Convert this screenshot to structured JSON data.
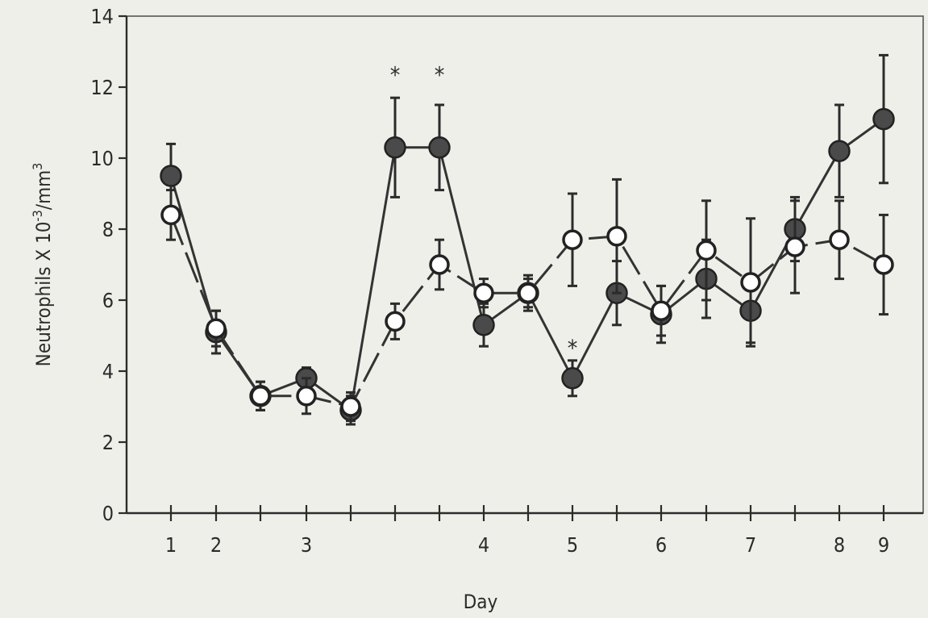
{
  "chart_data": {
    "type": "line",
    "xlabel": "Day",
    "ylabel": "Neutrophils X 10-3/mm3",
    "ylabel_parts": {
      "main": "Neutrophils X 10",
      "exp1": "-3",
      "unit": "/mm",
      "exp2": "3"
    },
    "ylim": [
      0,
      14
    ],
    "y_ticks": [
      0,
      2,
      4,
      6,
      8,
      10,
      12,
      14
    ],
    "x_ticks": [
      {
        "pos": 1,
        "label": "1"
      },
      {
        "pos": 2,
        "label": "2"
      },
      {
        "pos": 2.5,
        "label": ""
      },
      {
        "pos": 3,
        "label": "3"
      },
      {
        "pos": 3.5,
        "label": ""
      },
      {
        "pos": 3.75,
        "label": ""
      },
      {
        "pos": 4,
        "label": ""
      },
      {
        "pos": 4.5,
        "label": "4"
      },
      {
        "pos": 5,
        "label": ""
      },
      {
        "pos": 5.5,
        "label": "5"
      },
      {
        "pos": 6,
        "label": ""
      },
      {
        "pos": 6.5,
        "label": "6"
      },
      {
        "pos": 7,
        "label": ""
      },
      {
        "pos": 7.5,
        "label": "7"
      },
      {
        "pos": 8,
        "label": ""
      },
      {
        "pos": 8.5,
        "label": "8"
      },
      {
        "pos": 9,
        "label": "9"
      }
    ],
    "xlim": [
      0.6,
      9.3
    ],
    "grid": false,
    "series": [
      {
        "style": "filled",
        "points": [
          {
            "x": 1,
            "y": 9.5,
            "err": 0.9
          },
          {
            "x": 2,
            "y": 5.1,
            "err": 0.6
          },
          {
            "x": 2.5,
            "y": 3.3,
            "err": 0.4
          },
          {
            "x": 3,
            "y": 3.8,
            "err": 0.3
          },
          {
            "x": 3.5,
            "y": 2.9,
            "err": 0.4
          },
          {
            "x": 4,
            "y": 10.3,
            "err": 1.4
          },
          {
            "x": 4.5,
            "y": 10.3,
            "err": 1.2
          },
          {
            "x": 5,
            "y": 5.3,
            "err": 0.6
          },
          {
            "x": 5.5,
            "y": 6.2,
            "err": 0.5
          },
          {
            "x": 6,
            "y": 3.8,
            "err": 0.5
          },
          {
            "x": 6.5,
            "y": 6.2,
            "err": 0.9
          },
          {
            "x": 7,
            "y": 5.6,
            "err": 0.8
          },
          {
            "x": 7.5,
            "y": 6.6,
            "err": 1.1
          },
          {
            "x": 8,
            "y": 5.7,
            "err": 0.9
          },
          {
            "x": 8.5,
            "y": 8.0,
            "err": 0.9
          },
          {
            "x": 9,
            "y": 10.2,
            "err": 1.3
          },
          {
            "x": 9.5,
            "y": 11.1,
            "err": 1.8
          }
        ]
      },
      {
        "style": "open",
        "points": [
          {
            "x": 1,
            "y": 8.4,
            "err": 0.7
          },
          {
            "x": 2,
            "y": 5.2,
            "err": 0.5
          },
          {
            "x": 2.5,
            "y": 3.3,
            "err": 0.4
          },
          {
            "x": 3,
            "y": 3.3,
            "err": 0.5
          },
          {
            "x": 3.5,
            "y": 3.0,
            "err": 0.4
          },
          {
            "x": 4,
            "y": 5.4,
            "err": 0.5
          },
          {
            "x": 4.5,
            "y": 7.0,
            "err": 0.7
          },
          {
            "x": 5,
            "y": 6.2,
            "err": 0.4
          },
          {
            "x": 5.5,
            "y": 6.2,
            "err": 0.4
          },
          {
            "x": 6,
            "y": 7.7,
            "err": 1.3
          },
          {
            "x": 6.5,
            "y": 7.8,
            "err": 1.6
          },
          {
            "x": 7,
            "y": 5.7,
            "err": 0.7
          },
          {
            "x": 7.5,
            "y": 7.4,
            "err": 1.4
          },
          {
            "x": 8,
            "y": 6.5,
            "err": 1.8
          },
          {
            "x": 8.5,
            "y": 7.5,
            "err": 1.3
          },
          {
            "x": 9,
            "y": 7.7,
            "err": 1.1
          },
          {
            "x": 9.5,
            "y": 7.0,
            "err": 1.4
          }
        ]
      }
    ],
    "annotations": [
      {
        "text": "*",
        "x": 4,
        "y": 12.4
      },
      {
        "text": "*",
        "x": 4.5,
        "y": 12.4
      },
      {
        "text": "*",
        "x": 6,
        "y": 4.7
      }
    ]
  }
}
